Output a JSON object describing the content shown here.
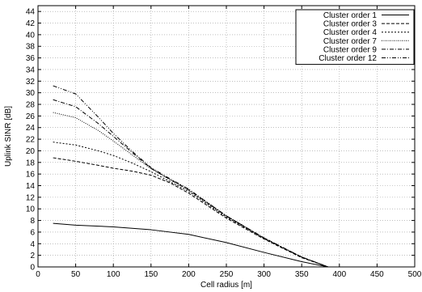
{
  "chart_data": {
    "type": "line",
    "title": "",
    "xlabel": "Cell radius [m]",
    "ylabel": "Uplink SINR [dB]",
    "xlim": [
      0,
      500
    ],
    "ylim": [
      0,
      45
    ],
    "xticks": [
      0,
      50,
      100,
      150,
      200,
      250,
      300,
      350,
      400,
      450,
      500
    ],
    "yticks": [
      0,
      2,
      4,
      6,
      8,
      10,
      12,
      14,
      16,
      18,
      20,
      22,
      24,
      26,
      28,
      30,
      32,
      34,
      36,
      38,
      40,
      42,
      44
    ],
    "grid": true,
    "legend_position": "top-right",
    "series": [
      {
        "name": "Cluster order 1",
        "dash": "solid",
        "x": [
          20,
          50,
          100,
          150,
          200,
          250,
          300,
          350,
          385
        ],
        "y": [
          7.5,
          7.2,
          6.9,
          6.4,
          5.6,
          4.2,
          2.5,
          0.9,
          0
        ]
      },
      {
        "name": "Cluster order 3",
        "dash": "dashed",
        "x": [
          20,
          50,
          80,
          100,
          125,
          150,
          175,
          200,
          250,
          300,
          350,
          385
        ],
        "y": [
          18.8,
          18.2,
          17.5,
          17.0,
          16.5,
          15.8,
          14.5,
          12.7,
          8.4,
          4.8,
          1.6,
          0
        ]
      },
      {
        "name": "Cluster order 4",
        "dash": "dotted",
        "x": [
          20,
          50,
          80,
          100,
          125,
          150,
          175,
          200,
          250,
          300,
          350,
          385
        ],
        "y": [
          21.5,
          21.0,
          20.0,
          19.2,
          17.9,
          16.4,
          14.7,
          13.0,
          8.6,
          4.9,
          1.7,
          0
        ]
      },
      {
        "name": "Cluster order 7",
        "dash": "fine-dotted",
        "x": [
          20,
          50,
          80,
          100,
          125,
          150,
          175,
          200,
          250,
          300,
          350,
          385
        ],
        "y": [
          26.6,
          25.7,
          23.5,
          21.7,
          19.3,
          16.9,
          15.0,
          13.2,
          8.7,
          4.9,
          1.7,
          0
        ]
      },
      {
        "name": "Cluster order 9",
        "dash": "dash-dot",
        "x": [
          20,
          50,
          80,
          100,
          125,
          150,
          175,
          200,
          250,
          300,
          350,
          385
        ],
        "y": [
          28.8,
          27.6,
          24.7,
          22.5,
          19.7,
          17.0,
          15.1,
          13.3,
          8.8,
          5.0,
          1.7,
          0
        ]
      },
      {
        "name": "Cluster order 12",
        "dash": "dash-dot-dot",
        "x": [
          20,
          50,
          80,
          100,
          125,
          150,
          175,
          200,
          250,
          300,
          350,
          385
        ],
        "y": [
          31.2,
          29.8,
          25.8,
          23.0,
          19.9,
          17.1,
          15.2,
          13.4,
          8.8,
          5.0,
          1.7,
          0
        ]
      }
    ]
  },
  "styles": {
    "line_color": "#000000",
    "grid_color": "#999999",
    "background": "#ffffff"
  }
}
